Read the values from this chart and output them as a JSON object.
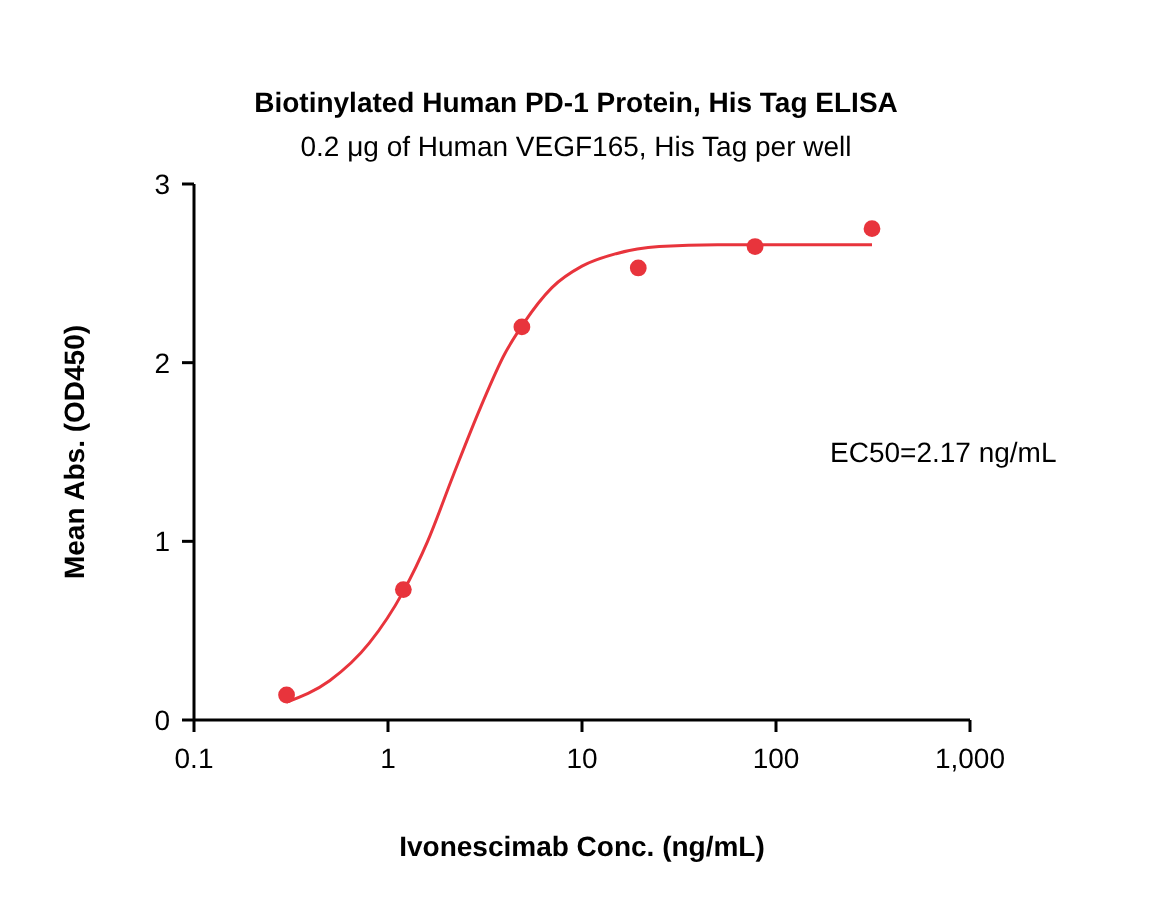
{
  "chart_data": {
    "type": "scatter",
    "title": "Biotinylated Human PD-1 Protein, His Tag ELISA",
    "subtitle": "0.2 μg of Human VEGF165, His Tag per well",
    "xlabel": "Ivonescimab Conc. (ng/mL)",
    "ylabel": "Mean Abs. (OD450)",
    "log": "x",
    "xlim": [
      0.1,
      1000
    ],
    "xticks": [
      0.1,
      1,
      10,
      100,
      {
        "value": 1000,
        "label": "1,000"
      }
    ],
    "ylim": [
      0,
      3
    ],
    "yticks": [
      0,
      1,
      2,
      3
    ],
    "grid": false,
    "annotations": [
      "EC50=2.17 ng/mL"
    ],
    "series": [
      {
        "color": "#e8343c",
        "marker": "circle",
        "x": [
          0.3,
          1.2,
          4.9,
          19.5,
          78,
          312.5
        ],
        "values": [
          0.14,
          0.73,
          2.2,
          2.53,
          2.65,
          2.75
        ]
      },
      {
        "type": "line",
        "color": "#e8343c",
        "marker": "none",
        "line_style": "solid",
        "x": [
          0.3,
          0.5,
          0.8,
          1.2,
          1.6,
          2.17,
          3,
          4,
          5,
          7,
          10,
          15,
          25,
          50,
          100,
          312.5
        ],
        "values": [
          0.1,
          0.22,
          0.43,
          0.72,
          1.0,
          1.37,
          1.75,
          2.05,
          2.22,
          2.42,
          2.54,
          2.61,
          2.65,
          2.66,
          2.66,
          2.66
        ]
      }
    ]
  }
}
